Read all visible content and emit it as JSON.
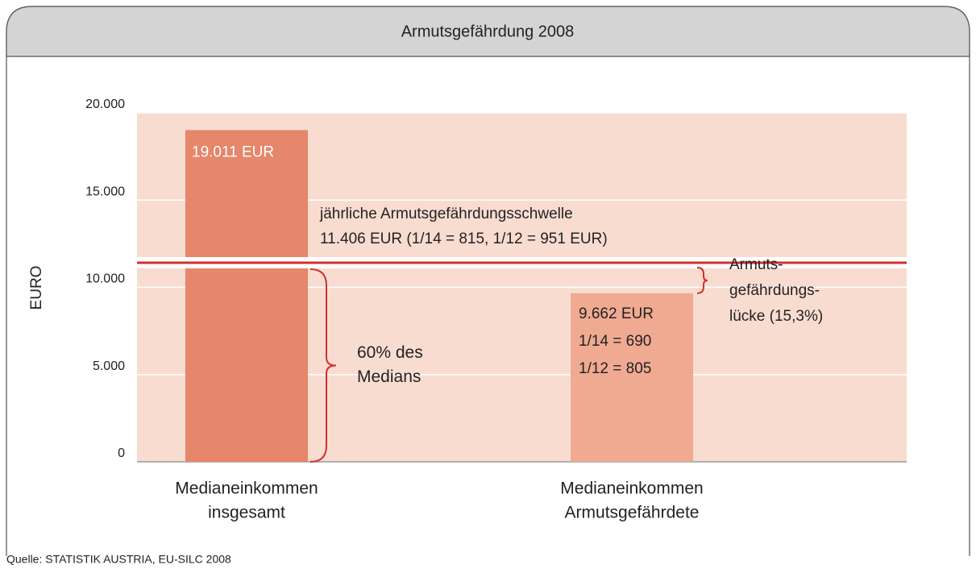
{
  "chart_data": {
    "type": "bar",
    "title": "Armutsgefährdung 2008",
    "y_label": "EURO",
    "categories": [
      [
        "Medianeinkommen",
        "insgesamt"
      ],
      [
        "Medianeinkommen",
        "Armutsgefährdete"
      ]
    ],
    "values": [
      19011,
      9662
    ],
    "value_labels": [
      "19.011 EUR",
      "9.662 EUR"
    ],
    "colors": [
      "#e6866a",
      "#f0aa92"
    ],
    "ylim": [
      0,
      20000
    ],
    "yticks": [
      0,
      {
        "value": 5000,
        "label": "5.000"
      },
      {
        "value": 10000,
        "label": "10.000"
      },
      {
        "value": 15000,
        "label": "15.000"
      },
      {
        "value": 20000,
        "label": "20.000"
      }
    ],
    "grid": true,
    "threshold": {
      "value": 11406,
      "color": "#d32f2f",
      "label": [
        "jährliche Armutsgefährdungsschwelle",
        "11.406 EUR (1/14 = 815, 1/12 = 951 EUR)"
      ]
    },
    "bar_notes": [
      "1/14 = 690",
      "1/12 = 805"
    ],
    "median_brace_label": [
      "60% des",
      "Medians"
    ],
    "gap_label": [
      "Armuts-",
      "gefährdungs-",
      "lücke (15,3%)"
    ],
    "source": "Quelle: STATISTIK AUSTRIA, EU-SILC 2008"
  }
}
